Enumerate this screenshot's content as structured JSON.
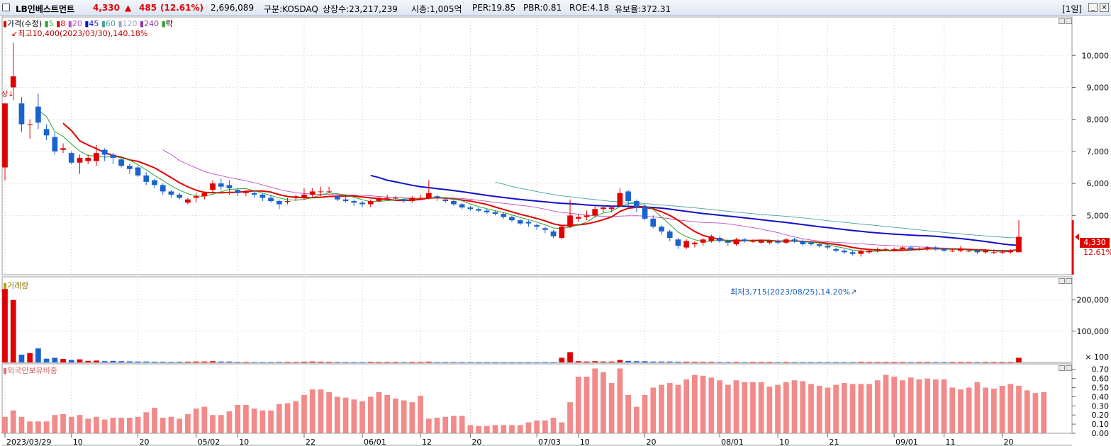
{
  "header": {
    "name": "LB인베스트먼트",
    "price": "4,330",
    "arrow": "▲",
    "change": "485",
    "change_pct": "(12.61%)",
    "volume": "2,696,089",
    "market": "구분:KOSDAQ",
    "shares": "상장수:23,217,239",
    "market_cap": "시총:1,005억",
    "per": "PER:19.85",
    "pbr": "PBR:0.81",
    "roe": "ROE:4.18",
    "turnover": "유보율:372.31",
    "period": "[1일]",
    "minimize_label": "_",
    "close_label": "×"
  },
  "legend": {
    "price": "가격(수정)",
    "ma": [
      {
        "label": "5",
        "color": "#2ca02c"
      },
      {
        "label": "8",
        "color": "#e00000"
      },
      {
        "label": "20",
        "color": "#c050c0"
      },
      {
        "label": "45",
        "color": "#1010c8"
      },
      {
        "label": "60",
        "color": "#4aa0a0"
      },
      {
        "label": "120",
        "color": "#a0a0c8"
      },
      {
        "label": "240",
        "color": "#8a3aa8"
      }
    ],
    "fall": "락"
  },
  "annotations": {
    "high": "최고10,400(2023/03/30),140.18%",
    "low": "최저3,715(2023/08/25),14.20%",
    "listing_mark": "상",
    "current_price": "4,330",
    "current_pct": "12.61%"
  },
  "volume_panel": {
    "title": "거래량"
  },
  "foreign_panel": {
    "title": "외국인보유비중"
  },
  "chart_data": {
    "type": "candlestick",
    "title": "LB인베스트먼트",
    "price_axis": {
      "ticks": [
        5000,
        6000,
        7000,
        8000,
        9000,
        10000
      ],
      "tick_labels": [
        "5,000",
        "6,000",
        "7,000",
        "8,000",
        "9,000",
        "10,000"
      ],
      "min": 3150,
      "max": 11200
    },
    "volume_axis": {
      "ticks": [
        100000,
        200000
      ],
      "tick_labels": [
        "100,000",
        "200,000"
      ],
      "unit_label": "× 100",
      "max": 265000
    },
    "foreign_axis": {
      "ticks": [
        0.0,
        0.1,
        0.2,
        0.3,
        0.4,
        0.5,
        0.6,
        0.7
      ],
      "tick_labels": [
        "0.00",
        "0.10",
        "0.20",
        "0.30",
        "0.40",
        "0.50",
        "0.60",
        "0.70"
      ],
      "min": 0.0,
      "max": 0.76
    },
    "x_labels": [
      {
        "i": 0,
        "label": "2023/03/29"
      },
      {
        "i": 8,
        "label": "10"
      },
      {
        "i": 16,
        "label": "20"
      },
      {
        "i": 23,
        "label": "05/02"
      },
      {
        "i": 28,
        "label": "10"
      },
      {
        "i": 36,
        "label": "22"
      },
      {
        "i": 43,
        "label": "06/01"
      },
      {
        "i": 50,
        "label": "12"
      },
      {
        "i": 56,
        "label": "20"
      },
      {
        "i": 64,
        "label": "07/03"
      },
      {
        "i": 69,
        "label": "10"
      },
      {
        "i": 77,
        "label": "20"
      },
      {
        "i": 86,
        "label": "08/01"
      },
      {
        "i": 93,
        "label": "10"
      },
      {
        "i": 99,
        "label": "21"
      },
      {
        "i": 107,
        "label": "09/01"
      },
      {
        "i": 113,
        "label": "11"
      },
      {
        "i": 120,
        "label": "20"
      }
    ],
    "candles": [
      [
        6500,
        8500,
        6100,
        8500,
        2350
      ],
      [
        9000,
        9350,
        8600,
        10400,
        2000
      ],
      [
        8500,
        7850,
        7600,
        8700,
        250
      ],
      [
        7850,
        7850,
        7400,
        8000,
        300
      ],
      [
        8400,
        7900,
        7700,
        8800,
        450
      ],
      [
        7700,
        7500,
        7350,
        7850,
        120
      ],
      [
        7450,
        7000,
        6900,
        7600,
        150
      ],
      [
        7050,
        7100,
        6950,
        7250,
        110
      ],
      [
        6950,
        6650,
        6600,
        7000,
        80
      ],
      [
        6650,
        6800,
        6300,
        6900,
        100
      ],
      [
        6700,
        6800,
        6600,
        6900,
        50
      ],
      [
        6700,
        6950,
        6550,
        7200,
        60
      ],
      [
        7050,
        6900,
        6700,
        7100,
        40
      ],
      [
        6900,
        6800,
        6600,
        6950,
        50
      ],
      [
        6750,
        6550,
        6500,
        6850,
        40
      ],
      [
        6550,
        6450,
        6300,
        6600,
        35
      ],
      [
        6500,
        6250,
        6200,
        6550,
        30
      ],
      [
        6250,
        6050,
        5950,
        6350,
        30
      ],
      [
        6100,
        5950,
        5850,
        6150,
        25
      ],
      [
        5950,
        5750,
        5650,
        6000,
        25
      ],
      [
        5750,
        5650,
        5550,
        5800,
        20
      ],
      [
        5650,
        5550,
        5500,
        5700,
        25
      ],
      [
        5400,
        5500,
        5350,
        5550,
        25
      ],
      [
        5550,
        5600,
        5400,
        5700,
        30
      ],
      [
        5600,
        5700,
        5500,
        5750,
        30
      ],
      [
        5800,
        6000,
        5700,
        6100,
        40
      ],
      [
        6000,
        5900,
        5800,
        6150,
        30
      ],
      [
        5950,
        5850,
        5650,
        6100,
        30
      ],
      [
        5800,
        5700,
        5600,
        5850,
        20
      ],
      [
        5700,
        5750,
        5600,
        5800,
        15
      ],
      [
        5700,
        5650,
        5550,
        5750,
        15
      ],
      [
        5650,
        5550,
        5450,
        5700,
        15
      ],
      [
        5550,
        5450,
        5400,
        5650,
        15
      ],
      [
        5450,
        5350,
        5200,
        5500,
        20
      ],
      [
        5450,
        5450,
        5350,
        5550,
        15
      ],
      [
        5550,
        5600,
        5450,
        5650,
        15
      ],
      [
        5550,
        5650,
        5500,
        5850,
        25
      ],
      [
        5650,
        5750,
        5550,
        5850,
        30
      ],
      [
        5750,
        5750,
        5600,
        5900,
        25
      ],
      [
        5750,
        5750,
        5700,
        5900,
        20
      ],
      [
        5600,
        5500,
        5450,
        5650,
        20
      ],
      [
        5500,
        5450,
        5400,
        5600,
        15
      ],
      [
        5450,
        5400,
        5300,
        5500,
        15
      ],
      [
        5400,
        5350,
        5250,
        5450,
        15
      ],
      [
        5350,
        5450,
        5250,
        5500,
        20
      ],
      [
        5450,
        5550,
        5400,
        5600,
        15
      ],
      [
        5550,
        5550,
        5500,
        5650,
        15
      ],
      [
        5550,
        5550,
        5500,
        5600,
        15
      ],
      [
        5500,
        5450,
        5400,
        5550,
        15
      ],
      [
        5450,
        5550,
        5400,
        5600,
        15
      ],
      [
        5550,
        5550,
        5500,
        5650,
        15
      ],
      [
        5550,
        5700,
        5500,
        6100,
        25
      ],
      [
        5600,
        5550,
        5450,
        5650,
        15
      ],
      [
        5500,
        5450,
        5400,
        5550,
        15
      ],
      [
        5450,
        5350,
        5300,
        5500,
        15
      ],
      [
        5350,
        5250,
        5200,
        5400,
        15
      ],
      [
        5250,
        5200,
        5150,
        5300,
        15
      ],
      [
        5200,
        5150,
        5100,
        5250,
        10
      ],
      [
        5150,
        5100,
        5050,
        5200,
        10
      ],
      [
        5100,
        5050,
        5000,
        5150,
        10
      ],
      [
        5050,
        4950,
        4900,
        5100,
        10
      ],
      [
        4950,
        4850,
        4800,
        5000,
        10
      ],
      [
        4850,
        4750,
        4700,
        4900,
        10
      ],
      [
        4800,
        4750,
        4650,
        4850,
        10
      ],
      [
        4700,
        4650,
        4550,
        4750,
        10
      ],
      [
        4600,
        4550,
        4450,
        4650,
        10
      ],
      [
        4500,
        4350,
        4300,
        4550,
        10
      ],
      [
        4300,
        4650,
        4250,
        4700,
        150
      ],
      [
        4650,
        5000,
        4600,
        5500,
        330
      ],
      [
        4900,
        4950,
        4800,
        5050,
        40
      ],
      [
        4950,
        5000,
        4850,
        5150,
        30
      ],
      [
        5000,
        5200,
        4950,
        5300,
        40
      ],
      [
        5200,
        5250,
        5100,
        5300,
        30
      ],
      [
        5200,
        5250,
        5100,
        5300,
        30
      ],
      [
        5300,
        5700,
        5250,
        5850,
        80
      ],
      [
        5750,
        5450,
        5300,
        5800,
        50
      ],
      [
        5450,
        5250,
        5100,
        5500,
        40
      ],
      [
        5250,
        4900,
        4850,
        5350,
        40
      ],
      [
        4900,
        4650,
        4600,
        5000,
        30
      ],
      [
        4650,
        4500,
        4400,
        4700,
        30
      ],
      [
        4500,
        4300,
        4200,
        4550,
        30
      ],
      [
        4250,
        4050,
        3950,
        4300,
        25
      ],
      [
        4000,
        4200,
        3950,
        4250,
        25
      ],
      [
        4100,
        4150,
        4000,
        4200,
        20
      ],
      [
        4150,
        4250,
        4050,
        4300,
        20
      ],
      [
        4200,
        4350,
        4150,
        4400,
        20
      ],
      [
        4300,
        4200,
        4150,
        4350,
        15
      ],
      [
        4200,
        4150,
        4050,
        4250,
        15
      ],
      [
        4100,
        4250,
        4050,
        4300,
        15
      ],
      [
        4250,
        4200,
        4150,
        4300,
        15
      ],
      [
        4200,
        4200,
        4150,
        4250,
        15
      ],
      [
        4150,
        4200,
        4100,
        4250,
        15
      ],
      [
        4150,
        4200,
        4100,
        4250,
        15
      ],
      [
        4200,
        4150,
        4100,
        4250,
        15
      ],
      [
        4150,
        4250,
        4100,
        4300,
        15
      ],
      [
        4250,
        4200,
        4150,
        4300,
        15
      ],
      [
        4200,
        4100,
        4050,
        4250,
        15
      ],
      [
        4150,
        4100,
        4050,
        4200,
        15
      ],
      [
        4100,
        4050,
        4000,
        4150,
        15
      ],
      [
        4050,
        4000,
        3950,
        4100,
        15
      ],
      [
        3950,
        3900,
        3850,
        4000,
        15
      ],
      [
        3900,
        3850,
        3800,
        3950,
        15
      ],
      [
        3850,
        3800,
        3750,
        3900,
        15
      ],
      [
        3800,
        3900,
        3715,
        3950,
        20
      ],
      [
        3850,
        3900,
        3800,
        3950,
        15
      ],
      [
        3900,
        3950,
        3850,
        4000,
        15
      ],
      [
        3950,
        3950,
        3900,
        4000,
        15
      ],
      [
        3950,
        3950,
        3900,
        4000,
        15
      ],
      [
        3950,
        4000,
        3900,
        4050,
        15
      ],
      [
        4000,
        3950,
        3900,
        4050,
        15
      ],
      [
        3950,
        3950,
        3900,
        4000,
        15
      ],
      [
        3950,
        4000,
        3900,
        4050,
        15
      ],
      [
        4000,
        3950,
        3900,
        4050,
        15
      ],
      [
        3950,
        3900,
        3850,
        4000,
        15
      ],
      [
        3900,
        3900,
        3850,
        3950,
        15
      ],
      [
        3900,
        3950,
        3850,
        4050,
        15
      ],
      [
        3900,
        3900,
        3850,
        3950,
        15
      ],
      [
        3900,
        3850,
        3800,
        3950,
        15
      ],
      [
        3850,
        3900,
        3800,
        3950,
        15
      ],
      [
        3850,
        3850,
        3800,
        3950,
        15
      ],
      [
        3850,
        3850,
        3800,
        3900,
        15
      ],
      [
        3850,
        3900,
        3800,
        3950,
        15
      ],
      [
        3850,
        4330,
        3850,
        4850,
        150
      ]
    ],
    "foreign": [
      0.18,
      0.25,
      0.18,
      0.13,
      0.13,
      0.13,
      0.2,
      0.21,
      0.18,
      0.2,
      0.16,
      0.18,
      0.15,
      0.17,
      0.17,
      0.17,
      0.18,
      0.23,
      0.28,
      0.17,
      0.18,
      0.16,
      0.21,
      0.27,
      0.29,
      0.2,
      0.2,
      0.24,
      0.31,
      0.31,
      0.27,
      0.25,
      0.25,
      0.32,
      0.33,
      0.35,
      0.42,
      0.48,
      0.48,
      0.45,
      0.4,
      0.39,
      0.37,
      0.35,
      0.4,
      0.45,
      0.42,
      0.38,
      0.36,
      0.34,
      0.41,
      0.16,
      0.17,
      0.18,
      0.19,
      0.19,
      0.09,
      0.08,
      0.08,
      0.09,
      0.09,
      0.09,
      0.09,
      0.12,
      0.14,
      0.14,
      0.17,
      0.12,
      0.34,
      0.62,
      0.62,
      0.71,
      0.67,
      0.55,
      0.71,
      0.42,
      0.29,
      0.42,
      0.5,
      0.53,
      0.55,
      0.53,
      0.59,
      0.64,
      0.63,
      0.61,
      0.58,
      0.53,
      0.58,
      0.56,
      0.56,
      0.56,
      0.51,
      0.53,
      0.56,
      0.58,
      0.57,
      0.54,
      0.52,
      0.5,
      0.53,
      0.55,
      0.54,
      0.54,
      0.54,
      0.58,
      0.64,
      0.62,
      0.58,
      0.61,
      0.59,
      0.6,
      0.59,
      0.59,
      0.5,
      0.48,
      0.5,
      0.56,
      0.5,
      0.49,
      0.52,
      0.54,
      0.52,
      0.47,
      0.44,
      0.45
    ]
  }
}
